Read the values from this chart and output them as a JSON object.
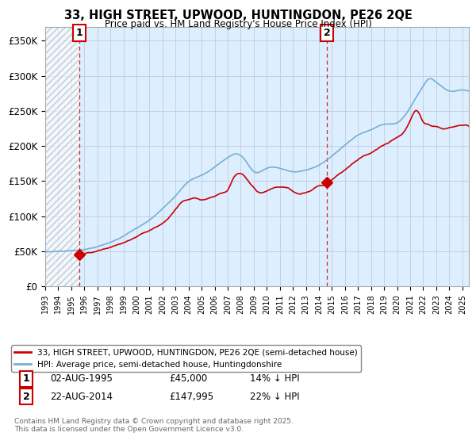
{
  "title_line1": "33, HIGH STREET, UPWOOD, HUNTINGDON, PE26 2QE",
  "title_line2": "Price paid vs. HM Land Registry's House Price Index (HPI)",
  "legend_label1": "33, HIGH STREET, UPWOOD, HUNTINGDON, PE26 2QE (semi-detached house)",
  "legend_label2": "HPI: Average price, semi-detached house, Huntingdonshire",
  "annotation1_date": "02-AUG-1995",
  "annotation1_price": "£45,000",
  "annotation1_hpi": "14% ↓ HPI",
  "annotation2_date": "22-AUG-2014",
  "annotation2_price": "£147,995",
  "annotation2_hpi": "22% ↓ HPI",
  "footer": "Contains HM Land Registry data © Crown copyright and database right 2025.\nThis data is licensed under the Open Government Licence v3.0.",
  "line1_color": "#cc0000",
  "line2_color": "#7aadd4",
  "annotation_line_color": "#cc0000",
  "point1_x": 1995.6,
  "point1_y": 45000,
  "point2_x": 2014.6,
  "point2_y": 147995,
  "ylabel_ticks": [
    "£0",
    "£50K",
    "£100K",
    "£150K",
    "£200K",
    "£250K",
    "£300K",
    "£350K"
  ],
  "ylabel_vals": [
    0,
    50000,
    100000,
    150000,
    200000,
    250000,
    300000,
    350000
  ],
  "xlim": [
    1993.0,
    2025.5
  ],
  "ylim": [
    0,
    370000
  ],
  "chart_bg": "#ddeeff",
  "background_color": "#ffffff"
}
